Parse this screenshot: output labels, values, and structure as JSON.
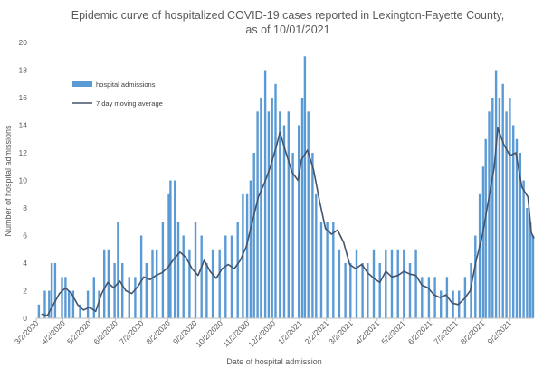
{
  "chart_data": {
    "type": "bar+line",
    "title_line1": "Epidemic curve of hospitalized COVID-19 cases reported in Lexington-Fayette County,",
    "title_line2": "as of 10/01/2021",
    "xlabel": "Date of hospital admission",
    "ylabel": "Number of hospital admissions",
    "ylim": [
      0,
      20
    ],
    "y_ticks": [
      "0",
      "2",
      "4",
      "6",
      "8",
      "10",
      "12",
      "14",
      "16",
      "18",
      "20"
    ],
    "x_range": [
      "2020-03-02",
      "2021-10-01"
    ],
    "x_ticks": [
      "3/2/2020",
      "4/2/2020",
      "5/2/2020",
      "6/2/2020",
      "7/2/2020",
      "8/2/2020",
      "9/2/2020",
      "10/2/2020",
      "11/2/2020",
      "12/2/2020",
      "1/2/2021",
      "2/2/2021",
      "3/2/2021",
      "4/2/2021",
      "5/2/2021",
      "6/2/2021",
      "7/2/2021",
      "8/2/2021",
      "9/2/2021"
    ],
    "grid": false,
    "legend_position": "top-left",
    "series": [
      {
        "name": "hospital admissions",
        "kind": "bar",
        "color": "#5b9bd5",
        "points": [
          [
            "2020-03-05",
            1
          ],
          [
            "2020-03-12",
            2
          ],
          [
            "2020-03-17",
            2
          ],
          [
            "2020-03-20",
            4
          ],
          [
            "2020-03-24",
            4
          ],
          [
            "2020-04-01",
            3
          ],
          [
            "2020-04-05",
            3
          ],
          [
            "2020-04-09",
            2
          ],
          [
            "2020-04-14",
            2
          ],
          [
            "2020-04-22",
            1
          ],
          [
            "2020-05-01",
            2
          ],
          [
            "2020-05-08",
            3
          ],
          [
            "2020-05-14",
            2
          ],
          [
            "2020-05-20",
            5
          ],
          [
            "2020-05-25",
            5
          ],
          [
            "2020-06-01",
            4
          ],
          [
            "2020-06-05",
            7
          ],
          [
            "2020-06-10",
            4
          ],
          [
            "2020-06-18",
            3
          ],
          [
            "2020-06-25",
            3
          ],
          [
            "2020-07-02",
            6
          ],
          [
            "2020-07-08",
            4
          ],
          [
            "2020-07-15",
            5
          ],
          [
            "2020-07-20",
            5
          ],
          [
            "2020-07-27",
            7
          ],
          [
            "2020-08-03",
            9
          ],
          [
            "2020-08-05",
            10
          ],
          [
            "2020-08-10",
            10
          ],
          [
            "2020-08-14",
            7
          ],
          [
            "2020-08-20",
            6
          ],
          [
            "2020-08-27",
            5
          ],
          [
            "2020-09-03",
            7
          ],
          [
            "2020-09-10",
            6
          ],
          [
            "2020-09-16",
            4
          ],
          [
            "2020-09-23",
            5
          ],
          [
            "2020-10-01",
            5
          ],
          [
            "2020-10-08",
            6
          ],
          [
            "2020-10-15",
            6
          ],
          [
            "2020-10-22",
            7
          ],
          [
            "2020-10-28",
            9
          ],
          [
            "2020-11-02",
            9
          ],
          [
            "2020-11-06",
            10
          ],
          [
            "2020-11-10",
            12
          ],
          [
            "2020-11-14",
            15
          ],
          [
            "2020-11-18",
            16
          ],
          [
            "2020-11-23",
            18
          ],
          [
            "2020-11-27",
            15
          ],
          [
            "2020-12-01",
            16
          ],
          [
            "2020-12-05",
            17
          ],
          [
            "2020-12-10",
            15
          ],
          [
            "2020-12-15",
            14
          ],
          [
            "2020-12-20",
            15
          ],
          [
            "2020-12-25",
            12
          ],
          [
            "2021-01-01",
            14
          ],
          [
            "2021-01-05",
            16
          ],
          [
            "2021-01-08",
            19
          ],
          [
            "2021-01-12",
            15
          ],
          [
            "2021-01-17",
            12
          ],
          [
            "2021-01-21",
            9
          ],
          [
            "2021-01-27",
            7
          ],
          [
            "2021-02-03",
            7
          ],
          [
            "2021-02-10",
            7
          ],
          [
            "2021-02-17",
            5
          ],
          [
            "2021-02-24",
            4
          ],
          [
            "2021-03-02",
            4
          ],
          [
            "2021-03-09",
            5
          ],
          [
            "2021-03-16",
            4
          ],
          [
            "2021-03-22",
            4
          ],
          [
            "2021-03-29",
            5
          ],
          [
            "2021-04-05",
            4
          ],
          [
            "2021-04-12",
            5
          ],
          [
            "2021-04-19",
            5
          ],
          [
            "2021-04-26",
            5
          ],
          [
            "2021-05-03",
            5
          ],
          [
            "2021-05-10",
            4
          ],
          [
            "2021-05-17",
            5
          ],
          [
            "2021-05-24",
            3
          ],
          [
            "2021-06-01",
            3
          ],
          [
            "2021-06-08",
            3
          ],
          [
            "2021-06-15",
            2
          ],
          [
            "2021-06-22",
            3
          ],
          [
            "2021-06-29",
            2
          ],
          [
            "2021-07-06",
            2
          ],
          [
            "2021-07-13",
            3
          ],
          [
            "2021-07-20",
            4
          ],
          [
            "2021-07-25",
            6
          ],
          [
            "2021-07-30",
            9
          ],
          [
            "2021-08-03",
            11
          ],
          [
            "2021-08-06",
            13
          ],
          [
            "2021-08-10",
            15
          ],
          [
            "2021-08-14",
            16
          ],
          [
            "2021-08-18",
            18
          ],
          [
            "2021-08-22",
            16
          ],
          [
            "2021-08-26",
            17
          ],
          [
            "2021-08-30",
            15
          ],
          [
            "2021-09-03",
            16
          ],
          [
            "2021-09-07",
            14
          ],
          [
            "2021-09-11",
            13
          ],
          [
            "2021-09-15",
            12
          ],
          [
            "2021-09-19",
            10
          ],
          [
            "2021-09-23",
            8
          ],
          [
            "2021-09-27",
            7
          ],
          [
            "2021-09-30",
            6
          ]
        ]
      },
      {
        "name": "7 day moving average",
        "kind": "line",
        "color": "#44546a",
        "points": [
          [
            "2020-03-08",
            0.3
          ],
          [
            "2020-03-15",
            0.2
          ],
          [
            "2020-03-22",
            1.0
          ],
          [
            "2020-03-29",
            1.8
          ],
          [
            "2020-04-05",
            2.2
          ],
          [
            "2020-04-12",
            1.8
          ],
          [
            "2020-04-19",
            1.0
          ],
          [
            "2020-04-26",
            0.6
          ],
          [
            "2020-05-03",
            0.8
          ],
          [
            "2020-05-10",
            0.5
          ],
          [
            "2020-05-17",
            1.8
          ],
          [
            "2020-05-24",
            2.6
          ],
          [
            "2020-05-31",
            2.2
          ],
          [
            "2020-06-07",
            2.7
          ],
          [
            "2020-06-14",
            2.0
          ],
          [
            "2020-06-21",
            1.8
          ],
          [
            "2020-06-28",
            2.3
          ],
          [
            "2020-07-05",
            3.0
          ],
          [
            "2020-07-12",
            2.8
          ],
          [
            "2020-07-19",
            3.1
          ],
          [
            "2020-07-26",
            3.3
          ],
          [
            "2020-08-02",
            3.7
          ],
          [
            "2020-08-09",
            4.3
          ],
          [
            "2020-08-16",
            4.8
          ],
          [
            "2020-08-23",
            4.4
          ],
          [
            "2020-08-30",
            3.6
          ],
          [
            "2020-09-06",
            3.1
          ],
          [
            "2020-09-13",
            4.2
          ],
          [
            "2020-09-20",
            3.4
          ],
          [
            "2020-09-27",
            2.9
          ],
          [
            "2020-10-04",
            3.6
          ],
          [
            "2020-10-11",
            3.9
          ],
          [
            "2020-10-18",
            3.6
          ],
          [
            "2020-10-25",
            4.2
          ],
          [
            "2020-11-01",
            5.2
          ],
          [
            "2020-11-08",
            7.0
          ],
          [
            "2020-11-15",
            8.8
          ],
          [
            "2020-11-22",
            9.8
          ],
          [
            "2020-11-29",
            11.0
          ],
          [
            "2020-12-06",
            12.5
          ],
          [
            "2020-12-10",
            13.5
          ],
          [
            "2020-12-17",
            12.0
          ],
          [
            "2020-12-24",
            10.6
          ],
          [
            "2020-12-31",
            10.0
          ],
          [
            "2021-01-04",
            11.5
          ],
          [
            "2021-01-11",
            12.2
          ],
          [
            "2021-01-18",
            10.8
          ],
          [
            "2021-01-25",
            8.5
          ],
          [
            "2021-02-01",
            6.5
          ],
          [
            "2021-02-08",
            6.1
          ],
          [
            "2021-02-15",
            6.4
          ],
          [
            "2021-02-22",
            5.5
          ],
          [
            "2021-03-01",
            3.9
          ],
          [
            "2021-03-08",
            3.6
          ],
          [
            "2021-03-15",
            3.9
          ],
          [
            "2021-03-22",
            3.3
          ],
          [
            "2021-03-29",
            2.9
          ],
          [
            "2021-04-05",
            2.6
          ],
          [
            "2021-04-12",
            3.4
          ],
          [
            "2021-04-19",
            3.0
          ],
          [
            "2021-04-26",
            3.1
          ],
          [
            "2021-05-03",
            3.4
          ],
          [
            "2021-05-10",
            3.2
          ],
          [
            "2021-05-17",
            3.1
          ],
          [
            "2021-05-24",
            2.4
          ],
          [
            "2021-05-31",
            2.2
          ],
          [
            "2021-06-07",
            1.7
          ],
          [
            "2021-06-14",
            1.5
          ],
          [
            "2021-06-21",
            1.7
          ],
          [
            "2021-06-28",
            1.1
          ],
          [
            "2021-07-05",
            1.0
          ],
          [
            "2021-07-12",
            1.4
          ],
          [
            "2021-07-19",
            2.0
          ],
          [
            "2021-07-26",
            4.2
          ],
          [
            "2021-08-02",
            6.0
          ],
          [
            "2021-08-09",
            8.5
          ],
          [
            "2021-08-16",
            11.0
          ],
          [
            "2021-08-20",
            13.8
          ],
          [
            "2021-08-27",
            12.6
          ],
          [
            "2021-09-03",
            11.8
          ],
          [
            "2021-09-10",
            12.0
          ],
          [
            "2021-09-17",
            9.5
          ],
          [
            "2021-09-24",
            8.8
          ],
          [
            "2021-09-28",
            6.2
          ],
          [
            "2021-10-01",
            5.8
          ]
        ]
      }
    ]
  }
}
